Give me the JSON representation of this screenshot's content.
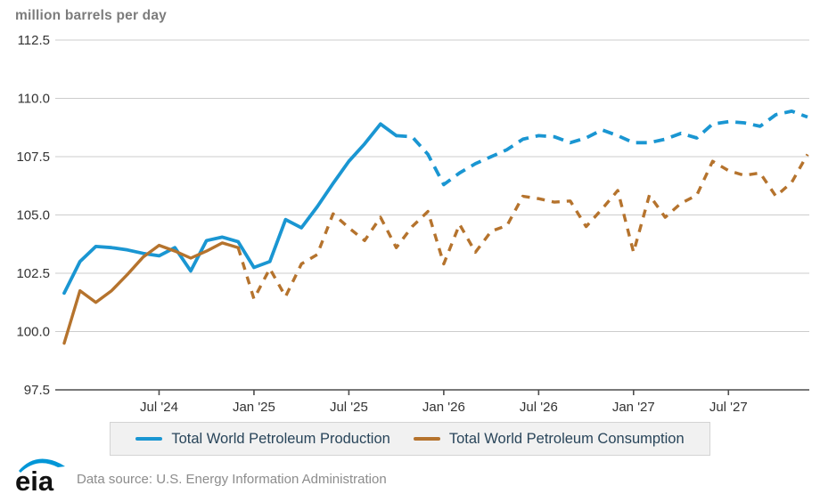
{
  "chart": {
    "title": "million barrels per day",
    "y_axis": {
      "tick_labels": [
        "112.5",
        "110.0",
        "107.5",
        "105.0",
        "102.5",
        "100.0",
        "97.5"
      ],
      "min": 97.5,
      "max": 112.5
    },
    "x_axis": {
      "tick_labels": [
        "Jul '24",
        "Jan '25",
        "Jul '25",
        "Jan '26",
        "Jul '26",
        "Jan '27",
        "Jul '27"
      ],
      "tick_month_indices": [
        6,
        12,
        18,
        24,
        30,
        36,
        42
      ]
    },
    "chart_data": {
      "type": "line",
      "title": "million barrels per day",
      "ylabel": "million barrels per day",
      "ylim": [
        97.5,
        112.5
      ],
      "grid": true,
      "legend_position": "bottom",
      "x": [
        "Jan '24",
        "Feb '24",
        "Mar '24",
        "Apr '24",
        "May '24",
        "Jun '24",
        "Jul '24",
        "Aug '24",
        "Sep '24",
        "Oct '24",
        "Nov '24",
        "Dec '24",
        "Jan '25",
        "Feb '25",
        "Mar '25",
        "Apr '25",
        "May '25",
        "Jun '25",
        "Jul '25",
        "Aug '25",
        "Sep '25",
        "Oct '25",
        "Nov '25",
        "Dec '25",
        "Jan '26",
        "Feb '26",
        "Mar '26",
        "Apr '26",
        "May '26",
        "Jun '26",
        "Jul '26",
        "Aug '26",
        "Sep '26",
        "Oct '26",
        "Nov '26",
        "Dec '26",
        "Jan '27",
        "Feb '27",
        "Mar '27",
        "Apr '27",
        "May '27",
        "Jun '27",
        "Jul '27",
        "Aug '27",
        "Sep '27",
        "Oct '27",
        "Nov '27",
        "Dec '27"
      ],
      "series": [
        {
          "name": "Total World Petroleum Production",
          "color": "#1a96d2",
          "solid_points": 22,
          "dash": "12 8",
          "width": 3.8,
          "values": [
            101.65,
            103.0,
            103.65,
            103.6,
            103.5,
            103.35,
            103.25,
            103.6,
            102.6,
            103.9,
            104.05,
            103.85,
            102.75,
            103.0,
            104.8,
            104.45,
            105.35,
            106.35,
            107.3,
            108.05,
            108.9,
            108.4,
            108.35,
            107.6,
            106.3,
            106.8,
            107.2,
            107.5,
            107.8,
            108.25,
            108.4,
            108.35,
            108.1,
            108.3,
            108.65,
            108.4,
            108.1,
            108.1,
            108.25,
            108.5,
            108.3,
            108.9,
            109.0,
            108.95,
            108.8,
            109.3,
            109.45,
            109.2
          ]
        },
        {
          "name": "Total World Petroleum Consumption",
          "color": "#b5732d",
          "solid_points": 12,
          "dash": "9 8",
          "width": 3.4,
          "values": [
            99.5,
            101.75,
            101.25,
            101.75,
            102.45,
            103.2,
            103.7,
            103.45,
            103.15,
            103.45,
            103.8,
            103.6,
            101.4,
            102.7,
            101.5,
            102.9,
            103.3,
            105.05,
            104.45,
            103.9,
            104.9,
            103.6,
            104.5,
            105.15,
            102.9,
            104.6,
            103.4,
            104.3,
            104.55,
            105.8,
            105.7,
            105.55,
            105.6,
            104.5,
            105.25,
            106.05,
            103.4,
            105.85,
            104.9,
            105.5,
            105.85,
            107.3,
            106.9,
            106.7,
            106.8,
            105.8,
            106.4,
            107.6
          ]
        }
      ]
    },
    "colors": {
      "grid": "#cccccc",
      "axis": "#4d4d4d",
      "tick_text": "#333333"
    }
  },
  "legend": {
    "items": [
      {
        "label": "Total World Petroleum Production",
        "color": "#1a96d2"
      },
      {
        "label": "Total World Petroleum Consumption",
        "color": "#b5732d"
      }
    ]
  },
  "footer": {
    "logo_text": "eia",
    "logo_accent": "#0096d7",
    "source_text": "Data source: U.S. Energy Information Administration"
  }
}
